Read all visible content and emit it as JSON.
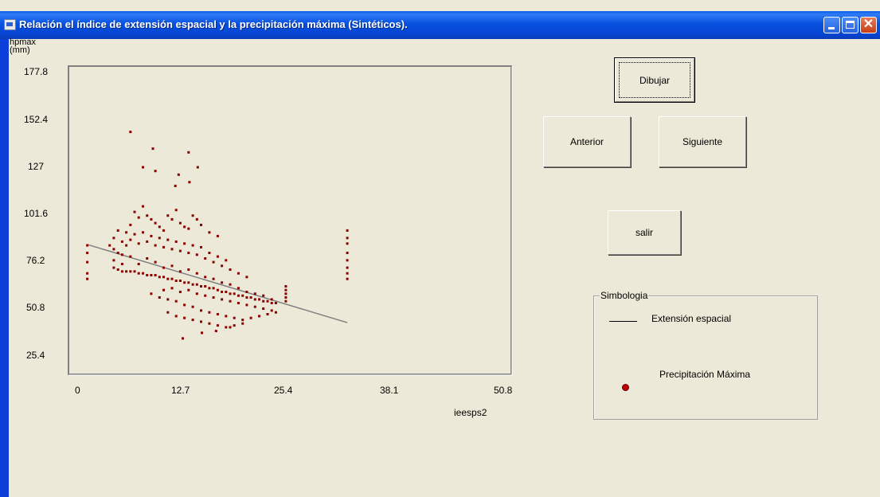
{
  "window": {
    "title": "Relación el índice de extensión espacial y la precipitación máxima (Sintéticos).",
    "close_glyph": "✕"
  },
  "plot": {
    "y_axis_label": "hpmax (mm)",
    "x_axis_label": "ieesps2",
    "y_ticks": [
      "177.8",
      "152.4",
      "127",
      "101.6",
      "76.2",
      "50.8",
      "25.4"
    ],
    "x_ticks": [
      "0",
      "12.7",
      "25.4",
      "38.1",
      "50.8"
    ]
  },
  "buttons": {
    "dibujar": "Dibujar",
    "anterior": "Anterior",
    "siguiente": "Siguiente",
    "salir": "salir"
  },
  "legend": {
    "title": "Simbologia",
    "line_label": "Extensión espacial",
    "point_label": "Precipitación Máxima"
  },
  "colors": {
    "title_bar": "#0A5BE5",
    "window_bg": "#ECE9D8",
    "points": "#8B0000",
    "trend_line": "#808080"
  },
  "chart_data": {
    "type": "scatter",
    "xlabel": "ieesps2",
    "ylabel": "hpmax (mm)",
    "xlim": [
      0,
      50.8
    ],
    "ylim": [
      25.4,
      177.8
    ],
    "x_ticks": [
      0,
      12.7,
      25.4,
      38.1,
      50.8
    ],
    "y_ticks": [
      177.8,
      152.4,
      127,
      101.6,
      76.2,
      50.8,
      25.4
    ],
    "grid": false,
    "series": [
      {
        "name": "Precipitación Máxima",
        "color": "#8B0000",
        "points": [
          [
            1.3,
            84
          ],
          [
            1.3,
            80
          ],
          [
            1.3,
            75
          ],
          [
            1.3,
            69
          ],
          [
            1.3,
            66
          ],
          [
            4,
            84
          ],
          [
            4.5,
            82
          ],
          [
            5,
            80
          ],
          [
            5.5,
            79
          ],
          [
            6,
            84
          ],
          [
            6.5,
            95
          ],
          [
            7,
            102
          ],
          [
            7.5,
            99
          ],
          [
            8,
            105
          ],
          [
            8.5,
            100
          ],
          [
            9,
            98
          ],
          [
            9.5,
            96
          ],
          [
            10,
            94
          ],
          [
            10.5,
            92
          ],
          [
            11,
            100
          ],
          [
            11.5,
            98
          ],
          [
            12,
            103
          ],
          [
            12.5,
            96
          ],
          [
            13,
            94
          ],
          [
            13.5,
            93
          ],
          [
            14,
            100
          ],
          [
            14.5,
            98
          ],
          [
            15,
            95
          ],
          [
            16,
            91
          ],
          [
            17,
            89
          ],
          [
            6.5,
            145
          ],
          [
            9.2,
            136
          ],
          [
            8,
            126
          ],
          [
            9.5,
            124
          ],
          [
            12.3,
            122
          ],
          [
            13.5,
            134
          ],
          [
            14.6,
            126
          ],
          [
            11.9,
            116
          ],
          [
            13.6,
            118
          ],
          [
            4.5,
            72
          ],
          [
            5,
            71
          ],
          [
            5.5,
            70
          ],
          [
            6,
            70
          ],
          [
            6.5,
            70
          ],
          [
            7,
            70
          ],
          [
            7.5,
            69
          ],
          [
            8,
            69
          ],
          [
            8.5,
            68
          ],
          [
            9,
            68
          ],
          [
            9.5,
            68
          ],
          [
            10,
            67
          ],
          [
            10.5,
            67
          ],
          [
            11,
            66
          ],
          [
            11.5,
            66
          ],
          [
            12,
            65
          ],
          [
            12.5,
            65
          ],
          [
            13,
            64
          ],
          [
            13.5,
            64
          ],
          [
            14,
            63
          ],
          [
            14.5,
            63
          ],
          [
            15,
            62
          ],
          [
            15.5,
            62
          ],
          [
            16,
            61
          ],
          [
            16.5,
            61
          ],
          [
            17,
            60
          ],
          [
            17.5,
            59
          ],
          [
            18,
            59
          ],
          [
            18.5,
            58
          ],
          [
            19,
            58
          ],
          [
            19.5,
            57
          ],
          [
            20,
            57
          ],
          [
            20.5,
            56
          ],
          [
            21,
            56
          ],
          [
            21.5,
            55
          ],
          [
            22,
            55
          ],
          [
            22.5,
            54
          ],
          [
            23,
            54
          ],
          [
            23.5,
            53
          ],
          [
            24,
            53
          ],
          [
            4.5,
            76
          ],
          [
            5.5,
            74
          ],
          [
            6.5,
            78
          ],
          [
            7.5,
            74
          ],
          [
            8.5,
            77
          ],
          [
            9.5,
            75
          ],
          [
            10.5,
            72
          ],
          [
            11.5,
            73
          ],
          [
            12.5,
            70
          ],
          [
            13.5,
            71
          ],
          [
            14.5,
            69
          ],
          [
            15.5,
            67
          ],
          [
            16.5,
            66
          ],
          [
            17.5,
            64
          ],
          [
            18.5,
            63
          ],
          [
            19.5,
            61
          ],
          [
            20.5,
            59
          ],
          [
            21.5,
            58
          ],
          [
            22.5,
            57
          ],
          [
            23.5,
            55
          ],
          [
            4.5,
            88
          ],
          [
            5.5,
            86
          ],
          [
            6.5,
            87
          ],
          [
            7.5,
            85
          ],
          [
            8.5,
            86
          ],
          [
            9.5,
            84
          ],
          [
            10.5,
            83
          ],
          [
            11.5,
            82
          ],
          [
            12.5,
            81
          ],
          [
            13.5,
            80
          ],
          [
            14.5,
            79
          ],
          [
            15.5,
            77
          ],
          [
            16.5,
            75
          ],
          [
            17.5,
            73
          ],
          [
            18.5,
            71
          ],
          [
            19.5,
            69
          ],
          [
            20.5,
            67
          ],
          [
            5,
            92
          ],
          [
            6,
            91
          ],
          [
            7,
            90
          ],
          [
            8,
            91
          ],
          [
            9,
            89
          ],
          [
            10,
            88
          ],
          [
            11,
            87
          ],
          [
            12,
            86
          ],
          [
            13,
            85
          ],
          [
            14,
            84
          ],
          [
            15,
            83
          ],
          [
            16,
            80
          ],
          [
            17,
            78
          ],
          [
            18,
            76
          ],
          [
            9,
            58
          ],
          [
            10,
            56
          ],
          [
            11,
            55
          ],
          [
            12,
            54
          ],
          [
            13,
            52
          ],
          [
            14,
            51
          ],
          [
            15,
            49
          ],
          [
            16,
            48
          ],
          [
            17,
            47
          ],
          [
            18,
            46
          ],
          [
            19,
            45
          ],
          [
            20,
            44
          ],
          [
            21,
            45
          ],
          [
            22,
            46
          ],
          [
            23,
            47
          ],
          [
            24,
            48
          ],
          [
            11,
            48
          ],
          [
            12,
            46
          ],
          [
            13,
            45
          ],
          [
            14,
            44
          ],
          [
            15,
            43
          ],
          [
            16,
            42
          ],
          [
            17,
            41
          ],
          [
            18,
            40
          ],
          [
            19,
            41
          ],
          [
            20,
            42
          ],
          [
            12.8,
            34
          ],
          [
            15.1,
            37
          ],
          [
            16.8,
            38
          ],
          [
            18.5,
            40
          ],
          [
            10.5,
            60
          ],
          [
            11.5,
            61
          ],
          [
            12.5,
            59
          ],
          [
            13.5,
            60
          ],
          [
            14.5,
            58
          ],
          [
            15.5,
            57
          ],
          [
            16.5,
            56
          ],
          [
            17.5,
            55
          ],
          [
            18.5,
            54
          ],
          [
            19.5,
            53
          ],
          [
            20.5,
            52
          ],
          [
            21.5,
            51
          ],
          [
            22.5,
            50
          ],
          [
            23.5,
            49
          ],
          [
            25.2,
            54
          ],
          [
            25.2,
            56
          ],
          [
            25.2,
            58
          ],
          [
            25.2,
            60
          ],
          [
            25.2,
            62
          ],
          [
            32.6,
            92
          ],
          [
            32.6,
            88
          ],
          [
            32.6,
            85
          ],
          [
            32.6,
            80
          ],
          [
            32.6,
            76
          ],
          [
            32.6,
            72
          ],
          [
            32.6,
            69
          ],
          [
            32.6,
            66
          ]
        ]
      },
      {
        "name": "Extensión espacial",
        "type": "line",
        "color": "#808080",
        "points": [
          [
            1.3,
            84.5
          ],
          [
            32.6,
            42.5
          ]
        ]
      }
    ]
  }
}
